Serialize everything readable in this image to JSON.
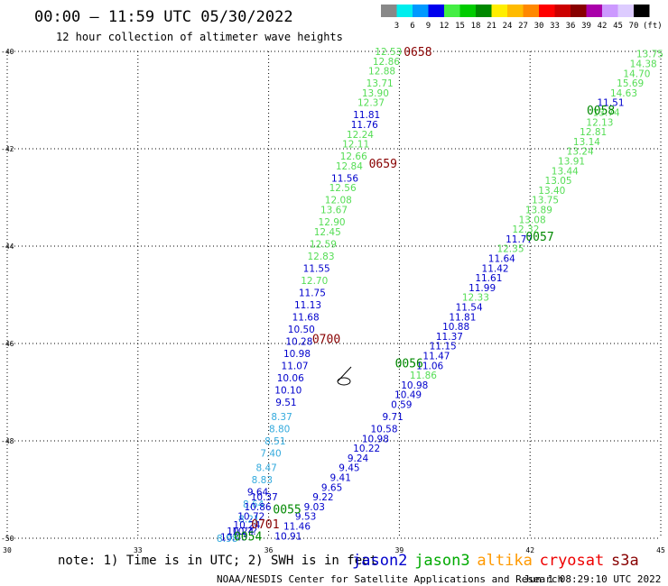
{
  "header": {
    "title": "00:00 — 11:59 UTC 05/30/2022",
    "subtitle": "12 hour collection of altimeter wave heights"
  },
  "scale": {
    "labels": [
      "3",
      "6",
      "9",
      "12",
      "15",
      "18",
      "21",
      "24",
      "27",
      "30",
      "33",
      "36",
      "39",
      "42",
      "45",
      "70"
    ],
    "unit": "(ft)",
    "colors": [
      "#888888",
      "#00eeee",
      "#0099ff",
      "#0000ee",
      "#44ee44",
      "#00cc00",
      "#008800",
      "#ffee00",
      "#ffbb00",
      "#ff8800",
      "#ff0000",
      "#cc0000",
      "#880000",
      "#aa00aa",
      "#cc99ff",
      "#ddccff",
      "#000000"
    ]
  },
  "footer": {
    "note": "note:  1) Time is in UTC;  2) SWH is in feet",
    "credit": "NOAA/NESDIS Center for Satellite Applications and Research",
    "timestamp": "Jun  1 08:29:10 UTC 2022",
    "satellites": [
      {
        "name": "jason2",
        "color": "#0000cc"
      },
      {
        "name": "jason3",
        "color": "#00aa00"
      },
      {
        "name": "altika",
        "color": "#ff9900"
      },
      {
        "name": "cryosat",
        "color": "#ee0000"
      },
      {
        "name": "s3a",
        "color": "#880000"
      }
    ]
  },
  "chart_data": {
    "type": "scatter",
    "xlim": [
      30,
      45
    ],
    "ylim": [
      -50,
      -40
    ],
    "x_ticks": [
      "30",
      "33",
      "36",
      "39",
      "42",
      "45"
    ],
    "y_ticks": [
      "-40",
      "-42",
      "-44",
      "-46",
      "-48",
      "-50"
    ],
    "grid": true,
    "point_colors": {
      "blue": "#0000cc",
      "green": "#55dd55",
      "cyan": "#33aadd",
      "time_green": "#008800",
      "time_red": "#880000"
    },
    "time_labels": [
      {
        "label": "0658",
        "x": 39.1,
        "y": -40.0,
        "color": "time_red"
      },
      {
        "label": "0659",
        "x": 38.3,
        "y": -42.3,
        "color": "time_red"
      },
      {
        "label": "0700",
        "x": 37.0,
        "y": -45.9,
        "color": "time_red"
      },
      {
        "label": "0701",
        "x": 35.6,
        "y": -49.7,
        "color": "time_red"
      },
      {
        "label": "0058",
        "x": 43.3,
        "y": -41.2,
        "color": "time_green"
      },
      {
        "label": "0057",
        "x": 41.9,
        "y": -43.8,
        "color": "time_green"
      },
      {
        "label": "0056",
        "x": 38.9,
        "y": -46.4,
        "color": "time_green"
      },
      {
        "label": "0055",
        "x": 36.1,
        "y": -49.4,
        "color": "time_green"
      },
      {
        "label": "0054",
        "x": 35.2,
        "y": -49.95,
        "color": "time_green"
      }
    ],
    "tracks": [
      {
        "points": [
          {
            "x": 38.75,
            "y": -40.0,
            "v": "12.53",
            "c": "green"
          },
          {
            "x": 38.7,
            "y": -40.2,
            "v": "12.86",
            "c": "green"
          },
          {
            "x": 38.6,
            "y": -40.4,
            "v": "12.88",
            "c": "green"
          },
          {
            "x": 38.55,
            "y": -40.65,
            "v": "13.71",
            "c": "green"
          },
          {
            "x": 38.45,
            "y": -40.85,
            "v": "13.90",
            "c": "green"
          },
          {
            "x": 38.35,
            "y": -41.05,
            "v": "12.37",
            "c": "green"
          },
          {
            "x": 38.25,
            "y": -41.3,
            "v": "11.81",
            "c": "blue"
          },
          {
            "x": 38.2,
            "y": -41.5,
            "v": "11.76",
            "c": "blue"
          },
          {
            "x": 38.1,
            "y": -41.7,
            "v": "12.24",
            "c": "green"
          },
          {
            "x": 38.0,
            "y": -41.9,
            "v": "12.11",
            "c": "green"
          },
          {
            "x": 37.95,
            "y": -42.15,
            "v": "12.66",
            "c": "green"
          },
          {
            "x": 37.85,
            "y": -42.35,
            "v": "12.84",
            "c": "green"
          },
          {
            "x": 37.75,
            "y": -42.6,
            "v": "11.56",
            "c": "blue"
          },
          {
            "x": 37.7,
            "y": -42.8,
            "v": "12.56",
            "c": "green"
          },
          {
            "x": 37.6,
            "y": -43.05,
            "v": "12.08",
            "c": "green"
          },
          {
            "x": 37.5,
            "y": -43.25,
            "v": "13.67",
            "c": "green"
          },
          {
            "x": 37.45,
            "y": -43.5,
            "v": "12.90",
            "c": "green"
          },
          {
            "x": 37.35,
            "y": -43.7,
            "v": "12.45",
            "c": "green"
          },
          {
            "x": 37.25,
            "y": -43.95,
            "v": "12.59",
            "c": "green"
          },
          {
            "x": 37.2,
            "y": -44.2,
            "v": "12.83",
            "c": "green"
          },
          {
            "x": 37.1,
            "y": -44.45,
            "v": "11.55",
            "c": "blue"
          },
          {
            "x": 37.05,
            "y": -44.7,
            "v": "12.70",
            "c": "green"
          },
          {
            "x": 37.0,
            "y": -44.95,
            "v": "11.75",
            "c": "blue"
          },
          {
            "x": 36.9,
            "y": -45.2,
            "v": "11.13",
            "c": "blue"
          },
          {
            "x": 36.85,
            "y": -45.45,
            "v": "11.68",
            "c": "blue"
          },
          {
            "x": 36.75,
            "y": -45.7,
            "v": "10.50",
            "c": "blue"
          },
          {
            "x": 36.7,
            "y": -45.95,
            "v": "10.28",
            "c": "blue"
          },
          {
            "x": 36.65,
            "y": -46.2,
            "v": "10.98",
            "c": "blue"
          },
          {
            "x": 36.6,
            "y": -46.45,
            "v": "11.07",
            "c": "blue"
          },
          {
            "x": 36.5,
            "y": -46.7,
            "v": "10.06",
            "c": "blue"
          },
          {
            "x": 36.45,
            "y": -46.95,
            "v": "10.10",
            "c": "blue"
          },
          {
            "x": 36.4,
            "y": -47.2,
            "v": "9.51",
            "c": "blue"
          },
          {
            "x": 36.3,
            "y": -47.5,
            "v": "8.37",
            "c": "cyan"
          },
          {
            "x": 36.25,
            "y": -47.75,
            "v": "8.80",
            "c": "cyan"
          },
          {
            "x": 36.15,
            "y": -48.0,
            "v": "8.51",
            "c": "cyan"
          },
          {
            "x": 36.05,
            "y": -48.25,
            "v": "7.40",
            "c": "cyan"
          },
          {
            "x": 35.95,
            "y": -48.55,
            "v": "8.47",
            "c": "cyan"
          },
          {
            "x": 35.85,
            "y": -48.8,
            "v": "8.83",
            "c": "cyan"
          },
          {
            "x": 35.75,
            "y": -49.05,
            "v": "9.64",
            "c": "blue"
          },
          {
            "x": 35.65,
            "y": -49.3,
            "v": "8.64",
            "c": "cyan"
          },
          {
            "x": 35.55,
            "y": -49.6,
            "v": "8.21",
            "c": "cyan"
          },
          {
            "x": 35.45,
            "y": -49.85,
            "v": "10.??",
            "c": "blue"
          }
        ]
      },
      {
        "points": [
          {
            "x": 44.75,
            "y": -40.05,
            "v": "13.75",
            "c": "green"
          },
          {
            "x": 44.6,
            "y": -40.25,
            "v": "14.38",
            "c": "green"
          },
          {
            "x": 44.45,
            "y": -40.45,
            "v": "14.70",
            "c": "green"
          },
          {
            "x": 44.3,
            "y": -40.65,
            "v": "15.69",
            "c": "green"
          },
          {
            "x": 44.15,
            "y": -40.85,
            "v": "14.63",
            "c": "green"
          },
          {
            "x": 43.85,
            "y": -41.05,
            "v": "11.51",
            "c": "blue"
          },
          {
            "x": 43.75,
            "y": -41.25,
            "v": "13.74",
            "c": "green"
          },
          {
            "x": 43.6,
            "y": -41.45,
            "v": "12.13",
            "c": "green"
          },
          {
            "x": 43.45,
            "y": -41.65,
            "v": "12.81",
            "c": "green"
          },
          {
            "x": 43.3,
            "y": -41.85,
            "v": "13.14",
            "c": "green"
          },
          {
            "x": 43.15,
            "y": -42.05,
            "v": "13.24",
            "c": "green"
          },
          {
            "x": 42.95,
            "y": -42.25,
            "v": "13.91",
            "c": "green"
          },
          {
            "x": 42.8,
            "y": -42.45,
            "v": "13.44",
            "c": "green"
          },
          {
            "x": 42.65,
            "y": -42.65,
            "v": "13.05",
            "c": "green"
          },
          {
            "x": 42.5,
            "y": -42.85,
            "v": "13.40",
            "c": "green"
          },
          {
            "x": 42.35,
            "y": -43.05,
            "v": "13.75",
            "c": "green"
          },
          {
            "x": 42.2,
            "y": -43.25,
            "v": "13.89",
            "c": "green"
          },
          {
            "x": 42.05,
            "y": -43.45,
            "v": "13.08",
            "c": "green"
          },
          {
            "x": 41.9,
            "y": -43.65,
            "v": "12.32",
            "c": "green"
          },
          {
            "x": 41.75,
            "y": -43.85,
            "v": "11.77",
            "c": "blue"
          },
          {
            "x": 41.55,
            "y": -44.05,
            "v": "12.35",
            "c": "green"
          },
          {
            "x": 41.35,
            "y": -44.25,
            "v": "11.64",
            "c": "blue"
          },
          {
            "x": 41.2,
            "y": -44.45,
            "v": "11.42",
            "c": "blue"
          },
          {
            "x": 41.05,
            "y": -44.65,
            "v": "11.61",
            "c": "blue"
          },
          {
            "x": 40.9,
            "y": -44.85,
            "v": "11.99",
            "c": "blue"
          },
          {
            "x": 40.75,
            "y": -45.05,
            "v": "12.33",
            "c": "green"
          },
          {
            "x": 40.6,
            "y": -45.25,
            "v": "11.54",
            "c": "blue"
          },
          {
            "x": 40.45,
            "y": -45.45,
            "v": "11.81",
            "c": "blue"
          },
          {
            "x": 40.3,
            "y": -45.65,
            "v": "10.88",
            "c": "blue"
          },
          {
            "x": 40.15,
            "y": -45.85,
            "v": "11.37",
            "c": "blue"
          },
          {
            "x": 40.0,
            "y": -46.05,
            "v": "11.15",
            "c": "blue"
          },
          {
            "x": 39.85,
            "y": -46.25,
            "v": "11.47",
            "c": "blue"
          },
          {
            "x": 39.7,
            "y": -46.45,
            "v": "11.06",
            "c": "blue"
          },
          {
            "x": 39.55,
            "y": -46.65,
            "v": "11.86",
            "c": "green"
          },
          {
            "x": 39.35,
            "y": -46.85,
            "v": "10.98",
            "c": "blue"
          },
          {
            "x": 39.2,
            "y": -47.05,
            "v": "10.49",
            "c": "blue"
          },
          {
            "x": 39.05,
            "y": -47.25,
            "v": "0.59",
            "c": "blue"
          },
          {
            "x": 38.85,
            "y": -47.5,
            "v": "9.71",
            "c": "blue"
          },
          {
            "x": 38.65,
            "y": -47.75,
            "v": "10.58",
            "c": "blue"
          },
          {
            "x": 38.45,
            "y": -47.95,
            "v": "10.98",
            "c": "blue"
          },
          {
            "x": 38.25,
            "y": -48.15,
            "v": "10.22",
            "c": "blue"
          },
          {
            "x": 38.05,
            "y": -48.35,
            "v": "9.24",
            "c": "blue"
          },
          {
            "x": 37.85,
            "y": -48.55,
            "v": "9.45",
            "c": "blue"
          },
          {
            "x": 37.65,
            "y": -48.75,
            "v": "9.41",
            "c": "blue"
          },
          {
            "x": 37.45,
            "y": -48.95,
            "v": "9.65",
            "c": "blue"
          },
          {
            "x": 37.25,
            "y": -49.15,
            "v": "9.22",
            "c": "blue"
          },
          {
            "x": 37.05,
            "y": -49.35,
            "v": "9.03",
            "c": "blue"
          },
          {
            "x": 36.85,
            "y": -49.55,
            "v": "9.53",
            "c": "blue"
          },
          {
            "x": 36.65,
            "y": -49.75,
            "v": "11.46",
            "c": "blue"
          },
          {
            "x": 36.45,
            "y": -49.95,
            "v": "10.91",
            "c": "blue"
          }
        ]
      },
      {
        "points": [
          {
            "x": 35.9,
            "y": -49.15,
            "v": "10.37",
            "c": "blue"
          },
          {
            "x": 35.75,
            "y": -49.35,
            "v": "10.86",
            "c": "blue"
          },
          {
            "x": 35.6,
            "y": -49.55,
            "v": "10.72",
            "c": "blue"
          },
          {
            "x": 35.5,
            "y": -49.72,
            "v": "10.24",
            "c": "blue"
          },
          {
            "x": 35.35,
            "y": -49.85,
            "v": "10.24",
            "c": "blue"
          },
          {
            "x": 35.2,
            "y": -49.97,
            "v": "10.43",
            "c": "blue"
          },
          {
            "x": 35.05,
            "y": -50.0,
            "v": "8.98",
            "c": "cyan"
          }
        ]
      }
    ]
  }
}
